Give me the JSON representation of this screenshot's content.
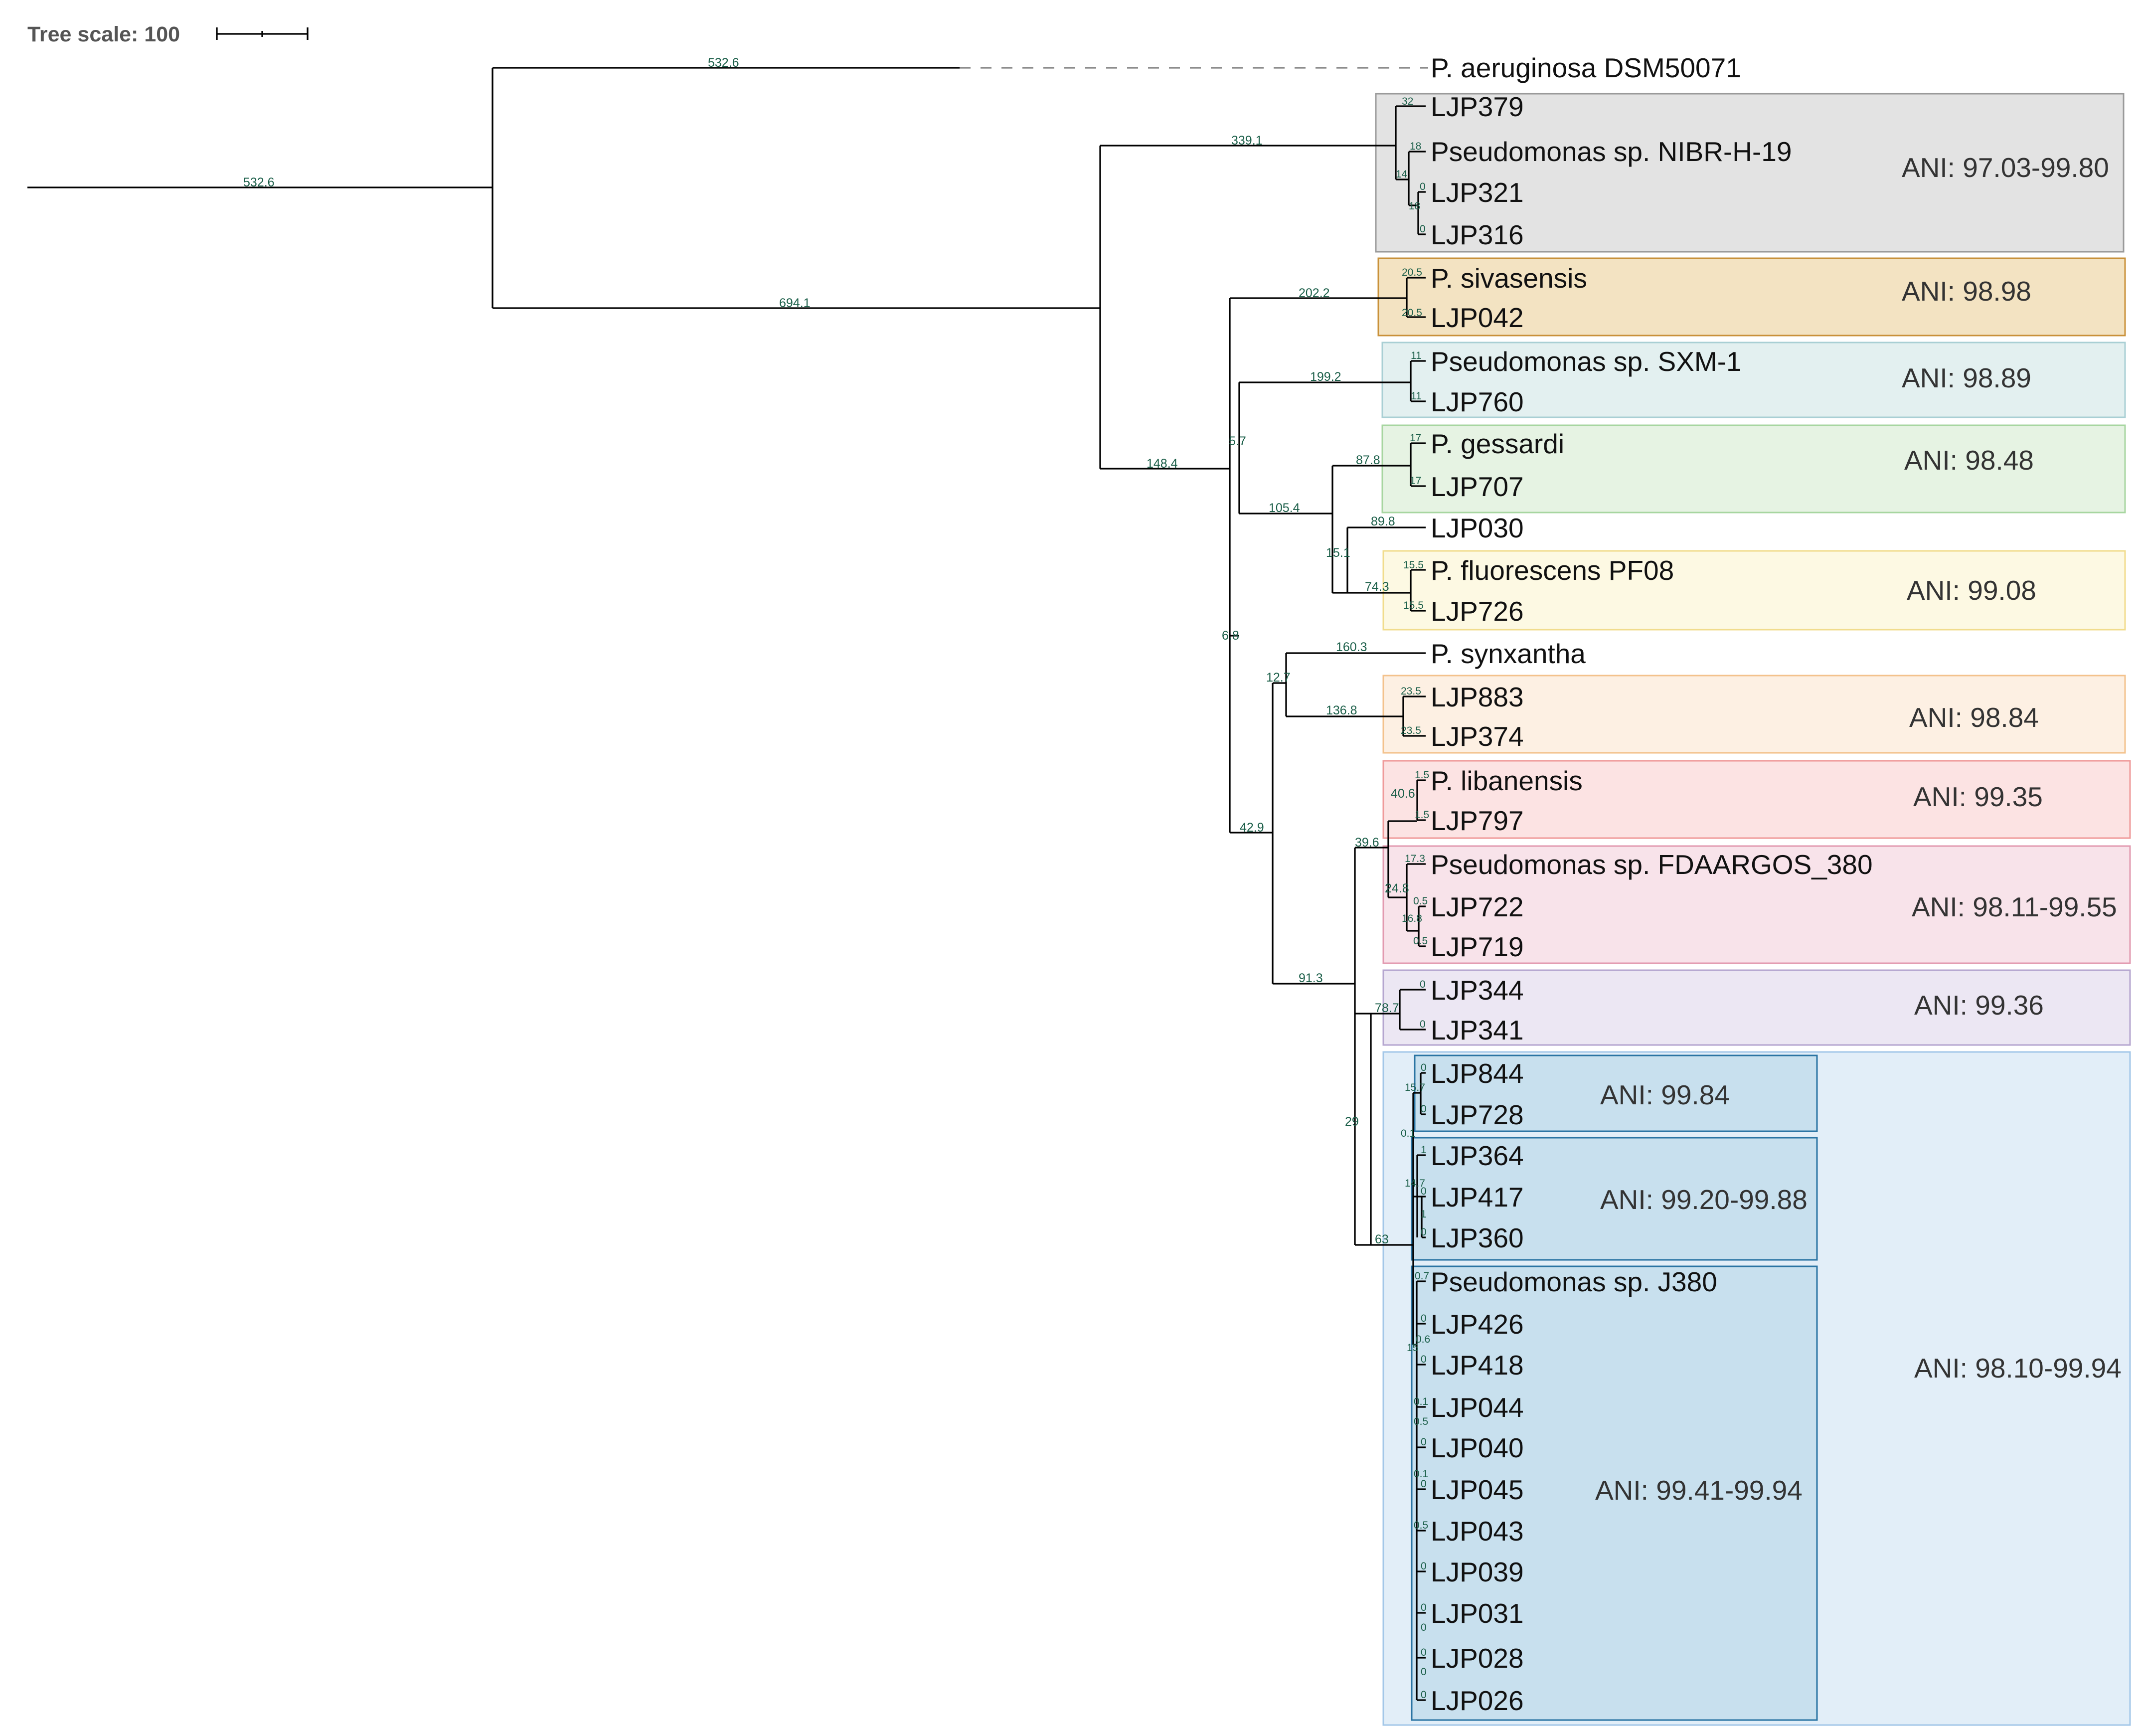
{
  "scale": {
    "label": "Tree scale: 100"
  },
  "taxa": {
    "aeruginosa": "P. aeruginosa DSM50071",
    "LJP379": "LJP379",
    "nibr": "Pseudomonas sp. NIBR-H-19",
    "LJP321": "LJP321",
    "LJP316": "LJP316",
    "sivasensis": "P. sivasensis",
    "LJP042": "LJP042",
    "sxm1": "Pseudomonas sp. SXM-1",
    "LJP760": "LJP760",
    "gessardi": "P. gessardi",
    "LJP707": "LJP707",
    "LJP030": "LJP030",
    "pf08": "P. fluorescens PF08",
    "LJP726": "LJP726",
    "synxantha": "P. synxantha",
    "LJP883": "LJP883",
    "LJP374": "LJP374",
    "libanensis": "P. libanensis",
    "LJP797": "LJP797",
    "fdaargos": "Pseudomonas sp. FDAARGOS_380",
    "LJP722": "LJP722",
    "LJP719": "LJP719",
    "LJP344": "LJP344",
    "LJP341": "LJP341",
    "LJP844": "LJP844",
    "LJP728": "LJP728",
    "LJP364": "LJP364",
    "LJP417": "LJP417",
    "LJP360": "LJP360",
    "j380": "Pseudomonas sp. J380",
    "LJP426": "LJP426",
    "LJP418": "LJP418",
    "LJP044": "LJP044",
    "LJP040": "LJP040",
    "LJP045": "LJP045",
    "LJP043": "LJP043",
    "LJP039": "LJP039",
    "LJP031": "LJP031",
    "LJP028": "LJP028",
    "LJP026": "LJP026"
  },
  "branch_lengths": {
    "root": "532.6",
    "aeruginosa": "532.6",
    "ingroup": "694.1",
    "nibr_clade": "339.1",
    "rest_clade": "148.4",
    "LJP379": "32",
    "nibr_tip": "18",
    "nibr_inner": "14",
    "LJP321": "0",
    "LJP321_inner": "18",
    "LJP316": "0",
    "siv_clade": "202.2",
    "sivasensis": "20.5",
    "LJP042": "20.5",
    "siv_sister": "5.7",
    "sxm_clade": "199.2",
    "sxm1": "11",
    "LJP760": "11",
    "ges_group": "105.4",
    "ges_clade": "87.8",
    "gessardi": "17",
    "LJP707": "17",
    "f030_group": "15.1",
    "LJP030": "89.8",
    "pf_clade": "74.3",
    "pf08": "15.5",
    "LJP726": "15.5",
    "lower_node": "6.8",
    "syn_group_outer": "42.9",
    "syn_group": "12.7",
    "synxantha": "160.3",
    "LJP883_clade": "136.8",
    "LJP883": "23.5",
    "LJP374": "23.5",
    "big_group": "91.3",
    "lib_group": "39.6",
    "lib_clade": "40.6",
    "libanensis": "1.5",
    "LJP797": "1.5",
    "fda_clade": "24.8",
    "fdaargos": "17.3",
    "fda_inner": "16.8",
    "LJP722": "0.5",
    "LJP719": "0.5",
    "node_29": "29",
    "LJP344_clade": "78.7",
    "LJP344": "0",
    "LJP341": "0",
    "big_clade": "63",
    "c844": "15.7",
    "LJP844": "0",
    "LJP728": "0",
    "c844_364": "0.1",
    "LJP364": "1",
    "c364": "14.7",
    "LJP417": "0",
    "LJP417_inner": "1",
    "LJP360": "0",
    "j380": "0.7",
    "cj380": "0.6",
    "cj380_a": "15",
    "LJP426": "0",
    "LJP418": "0",
    "LJP044_a": "0.1",
    "LJP044": "0.5",
    "LJP040": "0",
    "LJP045_a": "0.1",
    "LJP045": "0",
    "LJP043": "0.5",
    "LJP039": "0",
    "LJP031": "0",
    "LJP031_b": "0",
    "LJP028": "0",
    "LJP028_b": "0",
    "LJP026": "0"
  },
  "ani_boxes": {
    "nibr": {
      "label": "ANI: 97.03-99.80",
      "fill": "#e3e3e3",
      "stroke": "#9a9a9a"
    },
    "sivasensis": {
      "label": "ANI: 98.98",
      "fill": "#f3e3c2",
      "stroke": "#c9913a"
    },
    "sxm1": {
      "label": "ANI: 98.89",
      "fill": "#e3f0f0",
      "stroke": "#a9cfd4"
    },
    "gessardi": {
      "label": "ANI: 98.48",
      "fill": "#e6f3e3",
      "stroke": "#a7d6a0"
    },
    "pf08": {
      "label": "ANI: 99.08",
      "fill": "#fdf9e3",
      "stroke": "#f1dc8c"
    },
    "LJP883": {
      "label": "ANI: 98.84",
      "fill": "#fdf0e3",
      "stroke": "#f3c28c"
    },
    "libanensis": {
      "label": "ANI: 99.35",
      "fill": "#fce3e3",
      "stroke": "#ef9a9a"
    },
    "fdaargos": {
      "label": "ANI: 98.11-99.55",
      "fill": "#f8e3ea",
      "stroke": "#e29ab0"
    },
    "LJP344": {
      "label": "ANI: 99.36",
      "fill": "#ece7f3",
      "stroke": "#b5a6cf"
    },
    "big": {
      "label": "ANI: 98.10-99.94",
      "fill": "#e2eef8",
      "stroke": "#a3c7e8"
    },
    "c844": {
      "label": "ANI: 99.84",
      "fill": "#c8e0ee",
      "stroke": "#2a74a3"
    },
    "c364": {
      "label": "ANI: 99.20-99.88",
      "fill": "#c8e0ee",
      "stroke": "#2a74a3"
    },
    "cj380": {
      "label": "ANI: 99.41-99.94",
      "fill": "#c8e0ee",
      "stroke": "#2a74a3"
    }
  }
}
